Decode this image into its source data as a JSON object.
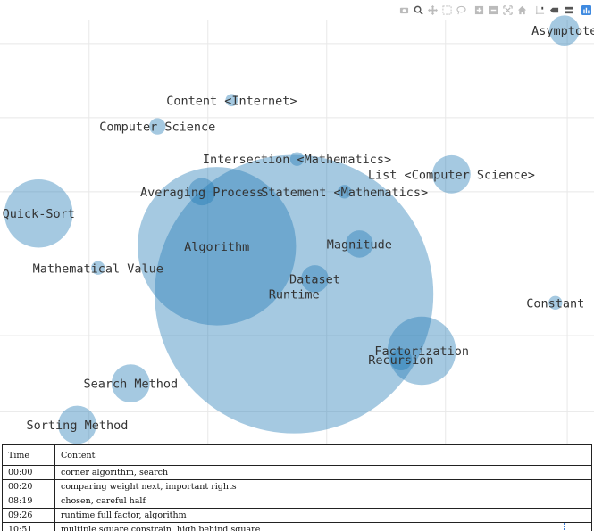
{
  "toolbar": {
    "icons": [
      "camera-icon",
      "zoom-icon",
      "pan-icon",
      "box-select-icon",
      "lasso-select-icon",
      "zoom-in-icon",
      "zoom-out-icon",
      "autoscale-icon",
      "home-icon",
      "spike-lines-icon",
      "hover-closest-icon",
      "hover-compare-icon",
      "plotly-logo-icon"
    ],
    "accent": "#1f77b4"
  },
  "chart_data": {
    "type": "scatter",
    "variant": "bubble",
    "grid": true,
    "marker_color": "#1f77b4",
    "marker_opacity": 0.4,
    "points": [
      {
        "label": "Asymptote",
        "x": 9.5,
        "y": 9.5,
        "size": 1.1
      },
      {
        "label": "Content <Internet>",
        "x": 3.9,
        "y": 7.9,
        "size": 0.45
      },
      {
        "label": "Computer Science",
        "x": 2.65,
        "y": 7.3,
        "size": 0.6
      },
      {
        "label": "Intersection <Mathematics>",
        "x": 5.0,
        "y": 6.55,
        "size": 0.5
      },
      {
        "label": "List <Computer Science>",
        "x": 7.6,
        "y": 6.2,
        "size": 1.4
      },
      {
        "label": "Averaging Process",
        "x": 3.4,
        "y": 5.8,
        "size": 1.0
      },
      {
        "label": "Statement <Mathematics>",
        "x": 5.8,
        "y": 5.8,
        "size": 0.5
      },
      {
        "label": "Quick-Sort",
        "x": 0.65,
        "y": 5.3,
        "size": 2.5
      },
      {
        "label": "Magnitude",
        "x": 6.05,
        "y": 4.6,
        "size": 1.0
      },
      {
        "label": "Algorithm",
        "x": 3.65,
        "y": 4.55,
        "size": 5.8
      },
      {
        "label": "Mathematical Value",
        "x": 1.65,
        "y": 4.05,
        "size": 0.5
      },
      {
        "label": "Dataset",
        "x": 5.3,
        "y": 3.8,
        "size": 1.0
      },
      {
        "label": "Runtime",
        "x": 4.95,
        "y": 3.45,
        "size": 10.2
      },
      {
        "label": "Constant",
        "x": 9.35,
        "y": 3.25,
        "size": 0.5
      },
      {
        "label": "Factorization",
        "x": 7.1,
        "y": 2.15,
        "size": 2.5
      },
      {
        "label": "Recursion",
        "x": 6.75,
        "y": 1.95,
        "size": 0.8
      },
      {
        "label": "Search Method",
        "x": 2.2,
        "y": 1.4,
        "size": 1.4
      },
      {
        "label": "Sorting Method",
        "x": 1.3,
        "y": 0.45,
        "size": 1.4
      }
    ]
  },
  "table": {
    "headers": [
      "Time",
      "Content"
    ],
    "rows": [
      [
        "00:00",
        "corner algorithm, search"
      ],
      [
        "00:20",
        "comparing weight next, important rights"
      ],
      [
        "08:19",
        "chosen, careful half"
      ],
      [
        "09:26",
        "runtime full factor, algorithm"
      ],
      [
        "10:51",
        "multiple square constrain, high behind square"
      ]
    ]
  }
}
